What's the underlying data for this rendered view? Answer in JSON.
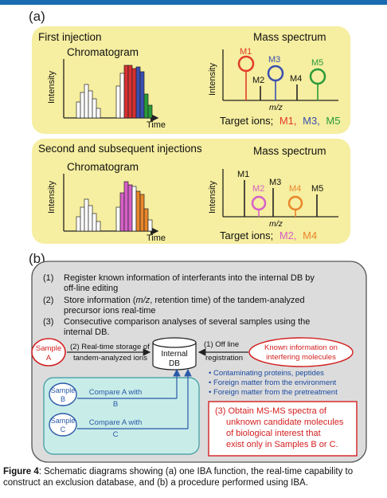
{
  "panel_a": {
    "label": "(a)",
    "first": {
      "title": "First injection",
      "chrom_title": "Chromatogram",
      "ylabel": "Intensity",
      "xlabel": "Time",
      "ms_title": "Mass spectrum",
      "ms_ylabel": "Intensity",
      "ms_xlabel": "m/z",
      "peaks": [
        "M1",
        "M2",
        "M3",
        "M4",
        "M5"
      ],
      "target_prefix": "Target ions;",
      "targets": [
        "M1,",
        "M3,",
        "M5"
      ]
    },
    "second": {
      "title": "Second and subsequent injections",
      "chrom_title": "Chromatogram",
      "ylabel": "Intensity",
      "xlabel": "Time",
      "ms_title": "Mass spectrum",
      "ms_ylabel": "Intensity",
      "ms_xlabel": "m/z",
      "peaks": [
        "M1",
        "M2",
        "M3",
        "M4",
        "M5"
      ],
      "target_prefix": "Target ions;",
      "targets": [
        "M2,",
        "M4"
      ]
    }
  },
  "panel_b": {
    "label": "(b)",
    "steps": [
      {
        "num": "(1)",
        "line1": "Register known information of interferants into the internal DB by",
        "line2": "off-line editing"
      },
      {
        "num": "(2)",
        "line1_pre": "Store information (",
        "line1_em": "m/z",
        "line1_post": ", retention time) of the tandem-analyzed",
        "line2": "precursor ions real-time"
      },
      {
        "num": "(3)",
        "line1": "Consecutive comparison analyses of several samples using the",
        "line2": "internal DB."
      }
    ],
    "sample_a": [
      "Sample",
      "A"
    ],
    "arrow2": [
      "(2) Real-time storage of",
      "tandem-analyzed ions"
    ],
    "db": [
      "Internal",
      "DB"
    ],
    "arrow1": [
      "(1) Off line",
      "registration"
    ],
    "known": [
      "Known information on",
      "interfering molecules"
    ],
    "bullets": [
      "Contaminating proteins, peptides",
      "Foreign matter from the environment",
      "Foreign matter from the pretreatment"
    ],
    "sample_b": [
      "Sample",
      "B"
    ],
    "compare_b": [
      "Compare A with",
      "B"
    ],
    "sample_c": [
      "Sample",
      "C"
    ],
    "compare_c": [
      "Compare A with",
      "C"
    ],
    "result": [
      "(3) Obtain MS-MS spectra of",
      "unknown candidate molecules",
      "of biological interest that",
      "exist only in Samples B or C."
    ]
  },
  "caption": {
    "label": "Figure 4",
    "text": ": Schematic diagrams showing (a) one IBA function, the real-time capability to construct an exclusion database, and (b) a procedure performed using IBA."
  },
  "colors": {
    "panel_yellow": "#f6eea0",
    "panel_gray": "#dcdcdc",
    "teal_box": "#c8ece8",
    "m1": "#e23b2a",
    "m3": "#3a4fb0",
    "m5": "#2a9a3a",
    "m2": "#d660c8",
    "m4": "#e8862a",
    "red_text": "#d42020",
    "blue_text": "#1a4aa0",
    "top_bar": "#1a6bb0"
  }
}
